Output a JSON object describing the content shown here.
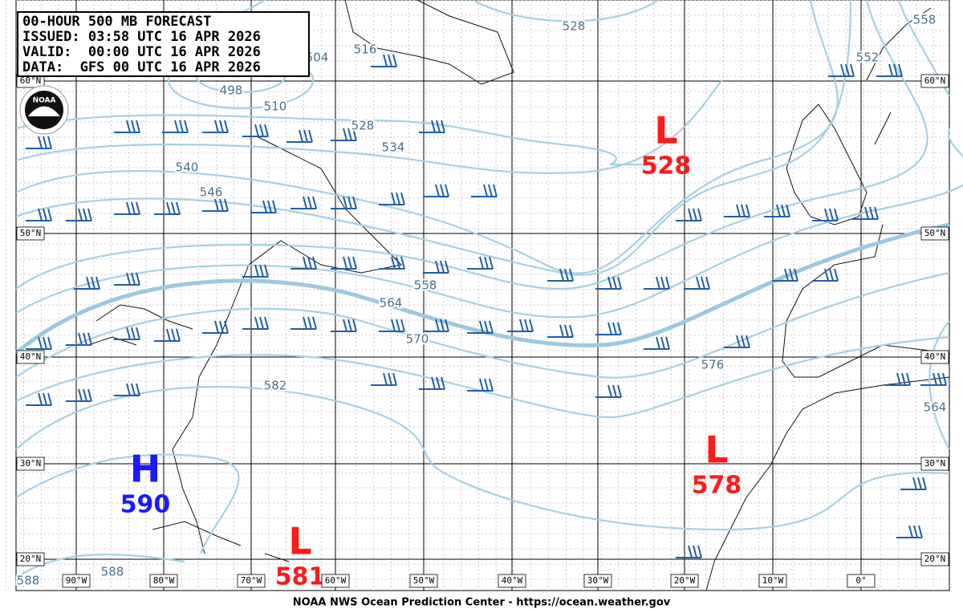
{
  "header": {
    "lines": [
      "00-HOUR 500 MB FORECAST",
      "ISSUED: 03:58 UTC 16 APR 2026",
      "VALID:  00:00 UTC 16 APR 2026",
      "DATA:  GFS 00 UTC 16 APR 2026"
    ]
  },
  "logo": "NOAA",
  "latitude_labels": [
    "60°N",
    "50°N",
    "40°N",
    "30°N",
    "20°N"
  ],
  "longitude_labels": [
    "90°W",
    "80°W",
    "70°W",
    "60°W",
    "50°W",
    "40°W",
    "30°W",
    "20°W",
    "10°W",
    "0°"
  ],
  "contour_labels": [
    516,
    504,
    498,
    510,
    528,
    534,
    540,
    546,
    558,
    564,
    570,
    576,
    582,
    588,
    588,
    528,
    552,
    558,
    564
  ],
  "pressure_centers": [
    {
      "kind": "L",
      "value": "528"
    },
    {
      "kind": "H",
      "value": "590"
    },
    {
      "kind": "L",
      "value": "578"
    },
    {
      "kind": "L",
      "value": "581"
    }
  ],
  "footer": "NOAA NWS Ocean Prediction Center - https://ocean.weather.gov"
}
